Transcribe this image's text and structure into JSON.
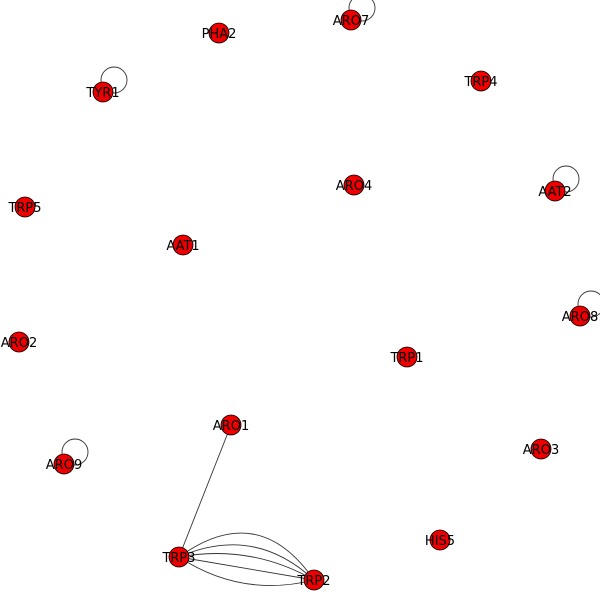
{
  "graph": {
    "node_fill": "#ee0000",
    "node_stroke": "#000000",
    "edge_color": "#333333",
    "nodes": [
      {
        "id": "PHA2"
      },
      {
        "id": "ARO7"
      },
      {
        "id": "TYR1"
      },
      {
        "id": "TRP4"
      },
      {
        "id": "ARO4"
      },
      {
        "id": "AAT2"
      },
      {
        "id": "TRP5"
      },
      {
        "id": "AAT1"
      },
      {
        "id": "ARO8"
      },
      {
        "id": "ARO2"
      },
      {
        "id": "TRP1"
      },
      {
        "id": "ARO1"
      },
      {
        "id": "ARO3"
      },
      {
        "id": "ARO9"
      },
      {
        "id": "HIS5"
      },
      {
        "id": "TRP3"
      },
      {
        "id": "TRP2"
      }
    ],
    "self_loops": [
      "ARO7",
      "TYR1",
      "AAT2",
      "ARO8",
      "ARO9"
    ],
    "edges": [
      {
        "source": "ARO1",
        "target": "TRP3"
      },
      {
        "source": "TRP3",
        "target": "TRP2"
      },
      {
        "source": "TRP3",
        "target": "TRP2"
      },
      {
        "source": "TRP3",
        "target": "TRP2"
      },
      {
        "source": "TRP3",
        "target": "TRP2"
      },
      {
        "source": "TRP3",
        "target": "TRP2"
      }
    ]
  }
}
